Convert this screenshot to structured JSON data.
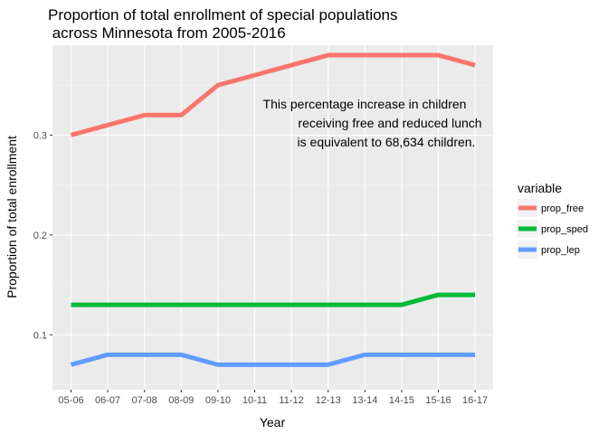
{
  "chart_data": {
    "type": "line",
    "title_line1": "Proportion of total enrollment of special populations",
    "title_line2": " across Minnesota from 2005-2016",
    "xlabel": "Year",
    "ylabel": "Proportion of total enrollment",
    "categories": [
      "05-06",
      "06-07",
      "07-08",
      "08-09",
      "09-10",
      "10-11",
      "11-12",
      "12-13",
      "13-14",
      "14-15",
      "15-16",
      "16-17"
    ],
    "ylim": [
      0.045,
      0.39
    ],
    "yticks": [
      0.1,
      0.2,
      0.3
    ],
    "ytick_labels": [
      "0.1",
      "0.2",
      "0.3"
    ],
    "grid": true,
    "legend_title": "variable",
    "legend_position": "right",
    "series": [
      {
        "name": "prop_free",
        "color": "#F8766D",
        "values": [
          0.3,
          0.31,
          0.32,
          0.32,
          0.35,
          0.36,
          0.37,
          0.38,
          0.38,
          0.38,
          0.38,
          0.37
        ]
      },
      {
        "name": "prop_sped",
        "color": "#00BA38",
        "values": [
          0.13,
          0.13,
          0.13,
          0.13,
          0.13,
          0.13,
          0.13,
          0.13,
          0.13,
          0.13,
          0.14,
          0.14
        ]
      },
      {
        "name": "prop_lep",
        "color": "#619CFF",
        "values": [
          0.07,
          0.08,
          0.08,
          0.08,
          0.07,
          0.07,
          0.07,
          0.07,
          0.08,
          0.08,
          0.08,
          0.08
        ]
      }
    ],
    "annotation": {
      "lines": [
        "This percentage increase in children",
        "receiving free and reduced lunch",
        "is equivalent to 68,634 children."
      ]
    }
  }
}
